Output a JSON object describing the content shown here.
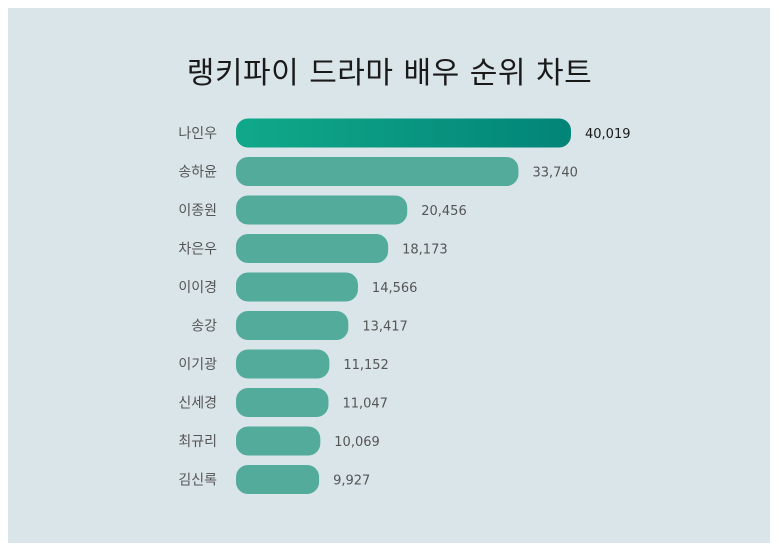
{
  "title": "랭키파이 드라마 배우 순위 차트",
  "colors": {
    "background": "#dae5ea",
    "bar": "#52ab9b",
    "bar_top_start": "#10a98a",
    "bar_top_end": "#028477"
  },
  "chart_data": {
    "type": "bar",
    "orientation": "horizontal",
    "title": "랭키파이 드라마 배우 순위 차트",
    "categories": [
      "나인우",
      "송하윤",
      "이종원",
      "차은우",
      "이이경",
      "송강",
      "이기광",
      "신세경",
      "최규리",
      "김신록"
    ],
    "values": [
      40019,
      33740,
      20456,
      18173,
      14566,
      13417,
      11152,
      11047,
      10069,
      9927
    ],
    "value_labels": [
      "40,019",
      "33,740",
      "20,456",
      "18,173",
      "14,566",
      "13,417",
      "11,152",
      "11,047",
      "10,069",
      "9,927"
    ],
    "grid": false,
    "legend": "none"
  }
}
